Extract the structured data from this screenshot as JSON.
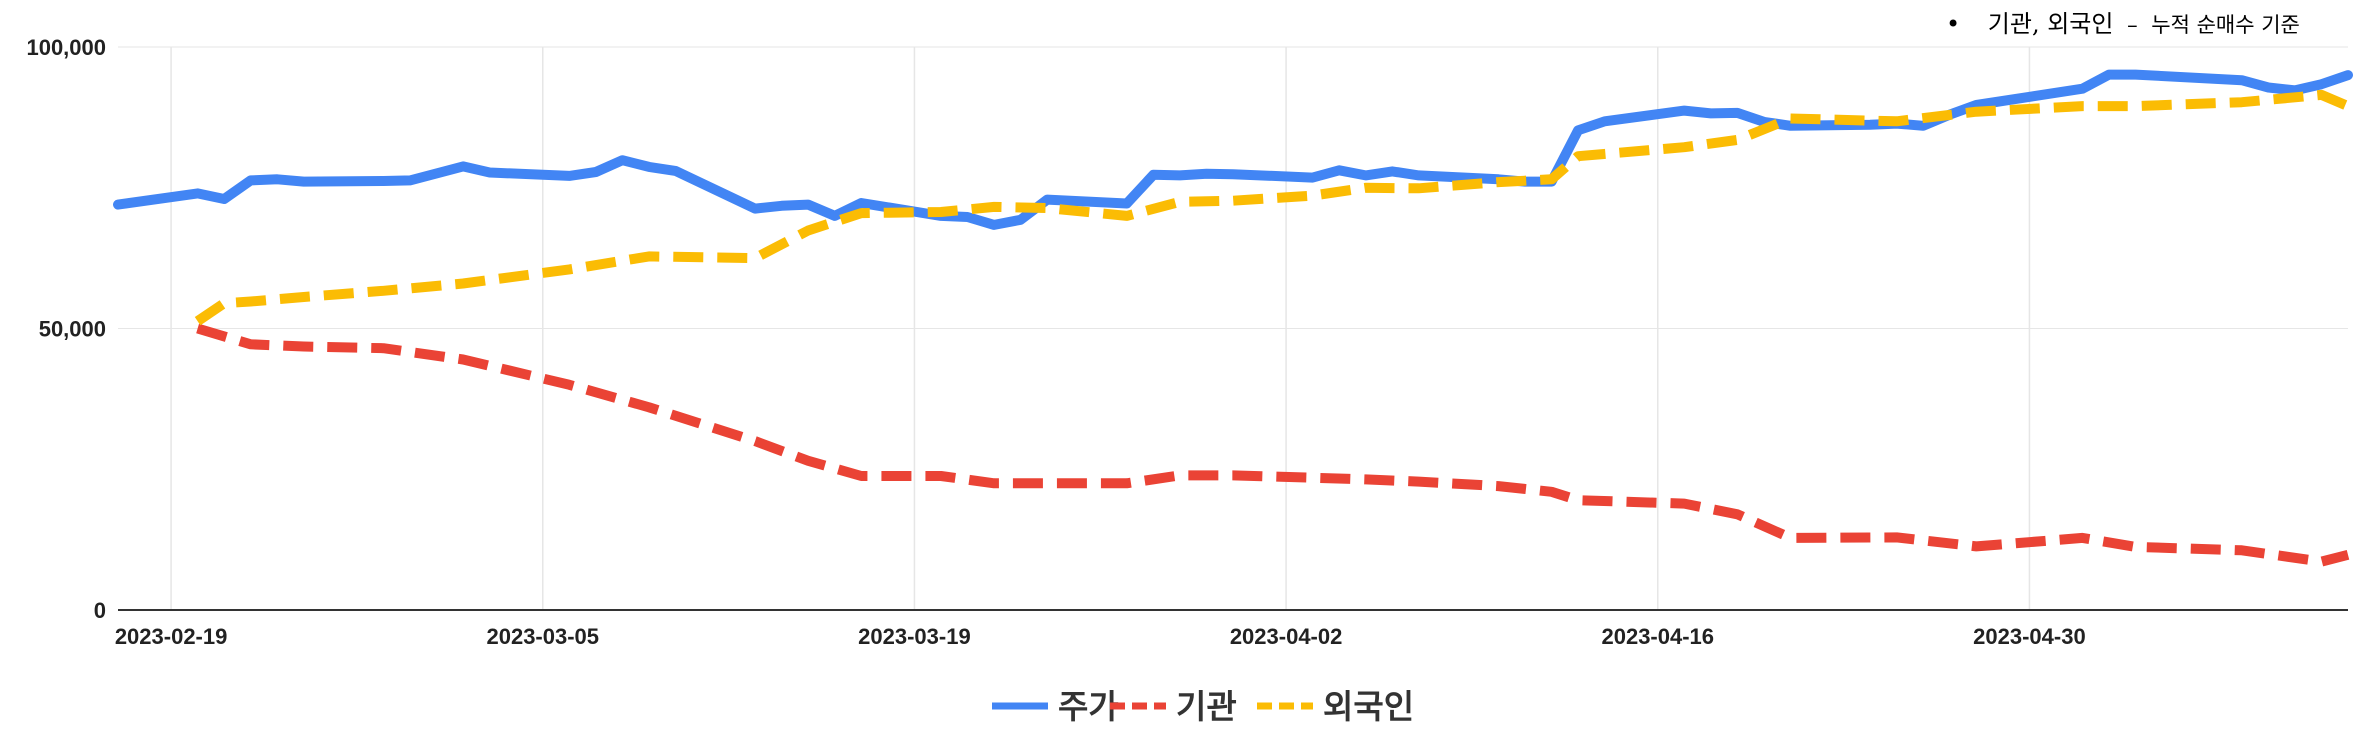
{
  "colors": {
    "price": "#4285F4",
    "institution": "#EA4335",
    "foreign": "#FBBC04",
    "grid": "#e6e6e6",
    "axis": "#333333"
  },
  "note": {
    "bullet": "•",
    "title": "기관, 외국인",
    "dash": "–",
    "subtitle": "누적 순매수 기준"
  },
  "chart_data": {
    "type": "line",
    "title": "",
    "xlabel": "",
    "ylabel": "",
    "ylim": [
      0,
      100000
    ],
    "y_ticks": [
      0,
      50000,
      100000
    ],
    "y_tick_labels": [
      "0",
      "50,000",
      "100,000"
    ],
    "x_range": [
      "2023-02-17",
      "2023-05-12"
    ],
    "x_ticks": [
      "2023-02-19",
      "2023-03-05",
      "2023-03-19",
      "2023-04-02",
      "2023-04-16",
      "2023-04-30"
    ],
    "grid": true,
    "legend_position": "bottom",
    "series": [
      {
        "name": "주가",
        "color": "#4285F4",
        "style": "solid",
        "x": [
          "2023-02-17",
          "2023-02-20",
          "2023-02-21",
          "2023-02-22",
          "2023-02-23",
          "2023-02-24",
          "2023-02-27",
          "2023-02-28",
          "2023-03-02",
          "2023-03-03",
          "2023-03-06",
          "2023-03-07",
          "2023-03-08",
          "2023-03-09",
          "2023-03-10",
          "2023-03-13",
          "2023-03-14",
          "2023-03-15",
          "2023-03-16",
          "2023-03-17",
          "2023-03-20",
          "2023-03-21",
          "2023-03-22",
          "2023-03-23",
          "2023-03-24",
          "2023-03-27",
          "2023-03-28",
          "2023-03-29",
          "2023-03-30",
          "2023-03-31",
          "2023-04-03",
          "2023-04-04",
          "2023-04-05",
          "2023-04-06",
          "2023-04-07",
          "2023-04-10",
          "2023-04-11",
          "2023-04-12",
          "2023-04-13",
          "2023-04-14",
          "2023-04-17",
          "2023-04-18",
          "2023-04-19",
          "2023-04-20",
          "2023-04-21",
          "2023-04-24",
          "2023-04-25",
          "2023-04-26",
          "2023-04-27",
          "2023-04-28",
          "2023-05-02",
          "2023-05-03",
          "2023-05-04",
          "2023-05-08",
          "2023-05-09",
          "2023-05-10",
          "2023-05-11",
          "2023-05-12"
        ],
        "values": [
          72000,
          74000,
          73000,
          76300,
          76500,
          76100,
          76200,
          76300,
          78800,
          77700,
          77100,
          77800,
          79900,
          78700,
          78000,
          71300,
          71800,
          72000,
          70000,
          72300,
          70000,
          69800,
          68400,
          69300,
          72900,
          72200,
          77300,
          77200,
          77500,
          77400,
          76800,
          78100,
          77200,
          77900,
          77200,
          76500,
          76100,
          76100,
          85200,
          86800,
          88700,
          88200,
          88300,
          86700,
          86000,
          86200,
          86400,
          86000,
          88000,
          89700,
          92600,
          95100,
          95100,
          94100,
          92800,
          92300,
          93400,
          95000
        ]
      },
      {
        "name": "기관",
        "color": "#EA4335",
        "style": "dashed",
        "x": [
          "2023-02-20",
          "2023-02-22",
          "2023-02-24",
          "2023-02-27",
          "2023-03-02",
          "2023-03-06",
          "2023-03-09",
          "2023-03-13",
          "2023-03-15",
          "2023-03-17",
          "2023-03-20",
          "2023-03-22",
          "2023-03-24",
          "2023-03-27",
          "2023-03-29",
          "2023-03-31",
          "2023-04-03",
          "2023-04-05",
          "2023-04-07",
          "2023-04-10",
          "2023-04-12",
          "2023-04-13",
          "2023-04-17",
          "2023-04-19",
          "2023-04-21",
          "2023-04-25",
          "2023-04-28",
          "2023-05-02",
          "2023-05-04",
          "2023-05-08",
          "2023-05-11",
          "2023-05-12"
        ],
        "values": [
          50000,
          47200,
          46800,
          46500,
          44500,
          40000,
          36000,
          30000,
          26500,
          23800,
          23800,
          22500,
          22500,
          22500,
          23900,
          23900,
          23500,
          23200,
          22800,
          22000,
          21000,
          19500,
          18900,
          17000,
          12800,
          12900,
          11300,
          12800,
          11200,
          10600,
          8600,
          9800
        ]
      },
      {
        "name": "외국인",
        "color": "#FBBC04",
        "style": "dashed",
        "x": [
          "2023-02-20",
          "2023-02-21",
          "2023-02-22",
          "2023-02-24",
          "2023-02-27",
          "2023-03-02",
          "2023-03-06",
          "2023-03-09",
          "2023-03-13",
          "2023-03-15",
          "2023-03-17",
          "2023-03-20",
          "2023-03-22",
          "2023-03-24",
          "2023-03-27",
          "2023-03-29",
          "2023-03-31",
          "2023-04-03",
          "2023-04-05",
          "2023-04-07",
          "2023-04-10",
          "2023-04-12",
          "2023-04-13",
          "2023-04-17",
          "2023-04-19",
          "2023-04-21",
          "2023-04-25",
          "2023-04-28",
          "2023-05-02",
          "2023-05-04",
          "2023-05-08",
          "2023-05-11",
          "2023-05-12"
        ],
        "values": [
          51300,
          54500,
          54800,
          55600,
          56700,
          58000,
          60500,
          62800,
          62500,
          67400,
          70500,
          70700,
          71600,
          71400,
          70000,
          72500,
          72700,
          73600,
          75000,
          74900,
          76000,
          76500,
          80600,
          82200,
          83500,
          87300,
          86800,
          88500,
          89500,
          89500,
          90200,
          91500,
          89500
        ]
      }
    ]
  }
}
